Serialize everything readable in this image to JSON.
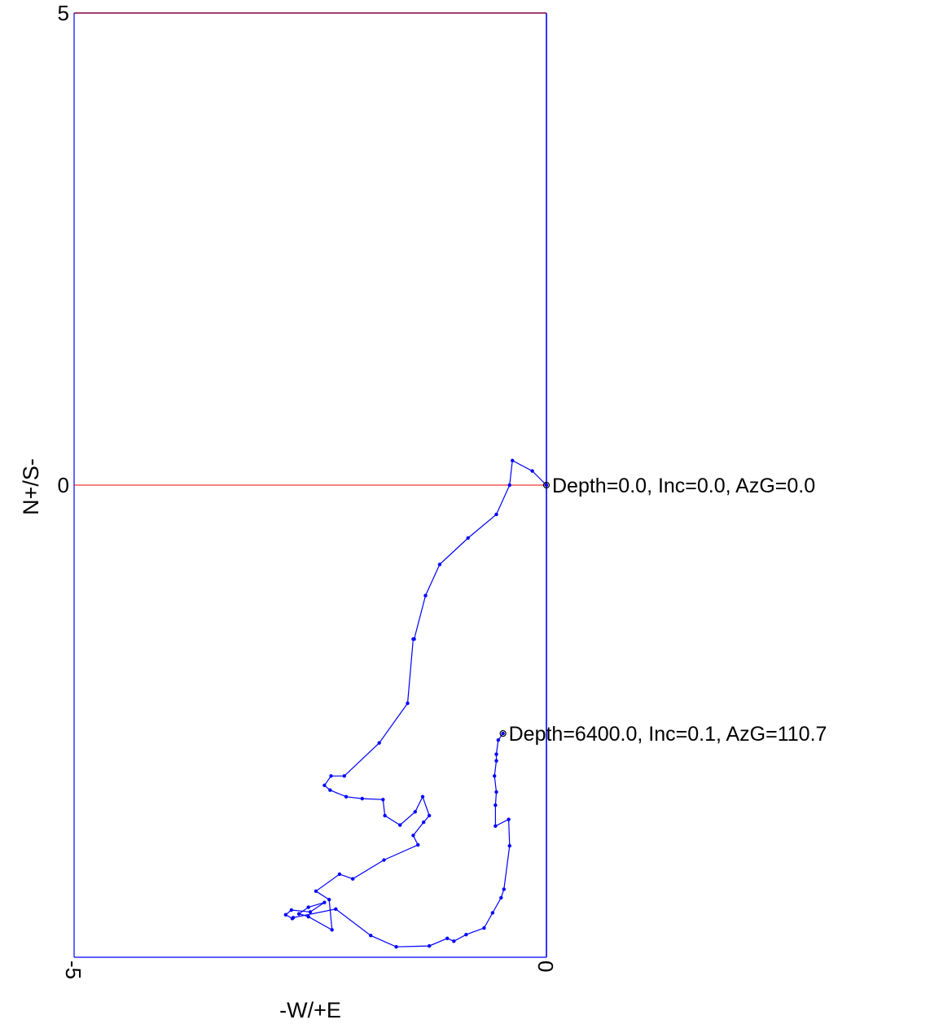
{
  "chart_data": {
    "type": "line",
    "title": "",
    "xlabel": "-W/+E",
    "ylabel": "N+/S-",
    "xlim": [
      -5,
      0
    ],
    "ylim": [
      -5,
      5
    ],
    "x_ticks": [
      "-5",
      "0"
    ],
    "y_ticks": [
      "5",
      "0"
    ],
    "grid": false,
    "legend": "none",
    "colors": {
      "frame": "#0000ff",
      "series": "#0000ff",
      "zero_line": "#ff0000",
      "top_frame": "#800040"
    },
    "series": [
      {
        "x": [
          0.0,
          -0.15,
          -0.36,
          -0.39,
          -0.53,
          -0.83,
          -1.13,
          -1.28,
          -1.4,
          -1.41,
          -1.47,
          -1.77,
          -2.14,
          -2.28,
          -2.35,
          -2.29,
          -2.12,
          -1.95,
          -1.73,
          -1.71,
          -1.55,
          -1.39,
          -1.31,
          -1.24,
          -1.3,
          -1.41,
          -1.36,
          -1.72,
          -2.05,
          -2.19,
          -2.44,
          -2.3,
          -2.27,
          -2.52,
          -2.62,
          -2.52,
          -2.35,
          -2.5,
          -2.7,
          -2.76,
          -2.69,
          -2.68,
          -2.23,
          -1.86,
          -1.59,
          -1.24,
          -1.05,
          -0.98,
          -0.85,
          -0.66,
          -0.57,
          -0.48,
          -0.45,
          -0.39,
          -0.4,
          -0.54,
          -0.54,
          -0.53,
          -0.55,
          -0.53,
          -0.53,
          -0.51,
          -0.46
        ],
        "y": [
          0.0,
          0.15,
          0.26,
          0.0,
          -0.31,
          -0.56,
          -0.84,
          -1.17,
          -1.63,
          -1.63,
          -2.31,
          -2.73,
          -3.08,
          -3.08,
          -3.18,
          -3.23,
          -3.3,
          -3.32,
          -3.33,
          -3.5,
          -3.6,
          -3.46,
          -3.3,
          -3.5,
          -3.57,
          -3.71,
          -3.81,
          -3.97,
          -4.17,
          -4.12,
          -4.3,
          -4.39,
          -4.71,
          -4.57,
          -4.54,
          -4.47,
          -4.42,
          -4.52,
          -4.5,
          -4.55,
          -4.59,
          -4.58,
          -4.49,
          -4.77,
          -4.89,
          -4.88,
          -4.8,
          -4.83,
          -4.76,
          -4.69,
          -4.53,
          -4.37,
          -4.28,
          -3.82,
          -3.54,
          -3.61,
          -3.39,
          -3.25,
          -3.08,
          -2.92,
          -2.85,
          -2.7,
          -2.63
        ]
      }
    ],
    "annotations": [
      {
        "x": 0.0,
        "y": 0.0,
        "text": "Depth=0.0, Inc=0.0, AzG=0.0"
      },
      {
        "x": -0.46,
        "y": -2.63,
        "text": "Depth=6400.0, Inc=0.1, AzG=110.7"
      }
    ]
  }
}
